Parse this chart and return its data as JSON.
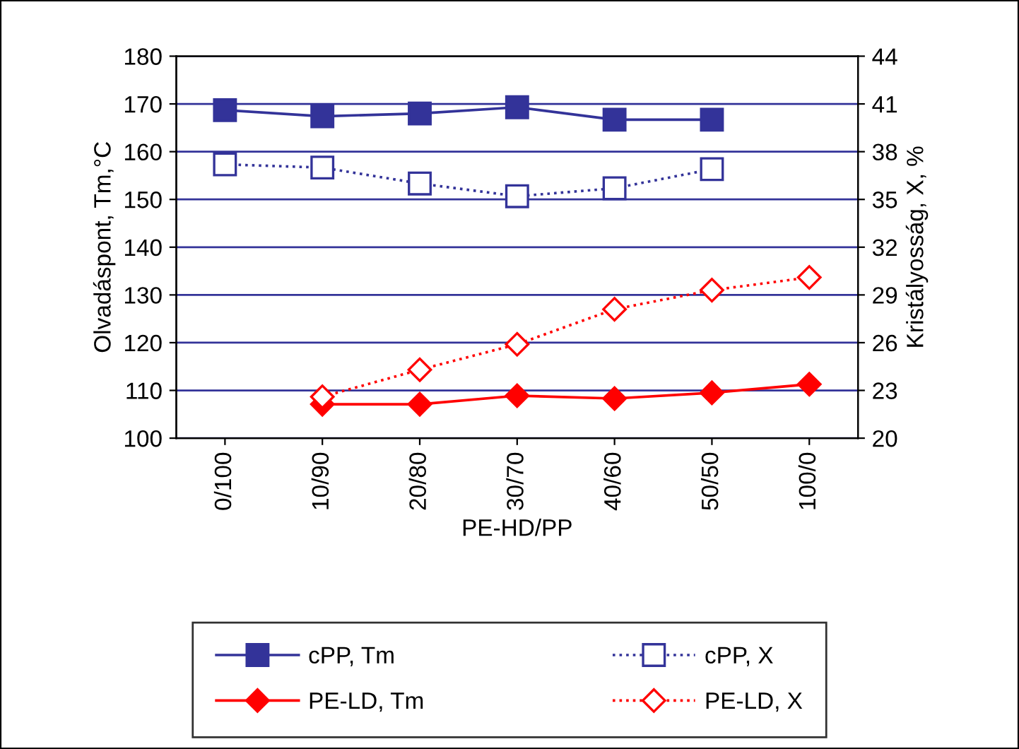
{
  "chart_data": {
    "type": "line",
    "xlabel": "PE-HD/PP",
    "ylabel": "Olvadáspont, Tm,°C",
    "y2label": "Kristályosság, X, %",
    "categories": [
      "0/100",
      "10/90",
      "20/80",
      "30/70",
      "40/60",
      "50/50",
      "100/0"
    ],
    "series": [
      {
        "name": "cPP, Tm",
        "color": "#333399",
        "marker": "square",
        "line_style": "solid",
        "values": [
          168.7,
          167.4,
          168.0,
          169.3,
          166.7,
          166.7,
          null
        ]
      },
      {
        "name": "PE-LD, Tm",
        "color": "#ff0000",
        "marker": "diamond",
        "line_style": "solid",
        "values": [
          null,
          107.1,
          107.1,
          108.9,
          108.3,
          109.5,
          111.3
        ]
      },
      {
        "name": "cPP, X",
        "color": "#333399",
        "marker": "square",
        "line_style": "dotted",
        "axis": "y2",
        "values": [
          37.2,
          37.0,
          36.0,
          35.2,
          35.7,
          36.9,
          null
        ]
      },
      {
        "name": "PE-LD, X",
        "color": "#ff0000",
        "marker": "diamond",
        "line_style": "dotted",
        "axis": "y2",
        "values": [
          null,
          22.6,
          24.3,
          25.9,
          28.1,
          29.3,
          30.1
        ]
      }
    ],
    "ylim": [
      100,
      180
    ],
    "yticks": [
      100,
      110,
      120,
      130,
      140,
      150,
      160,
      170,
      180
    ],
    "y2lim": [
      20,
      44
    ],
    "y2ticks": [
      20,
      23,
      26,
      29,
      32,
      35,
      38,
      41,
      44
    ],
    "grid": "y",
    "legend": "bottom"
  }
}
